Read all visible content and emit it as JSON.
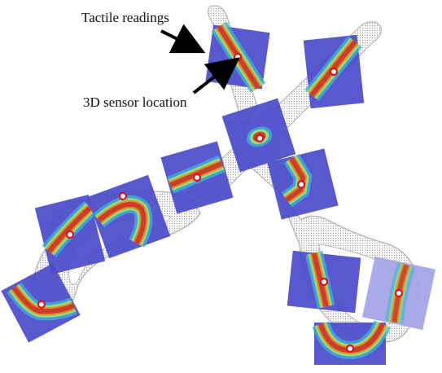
{
  "annotations": {
    "tactile_readings": "Tactile readings",
    "sensor_location": "3D sensor location"
  },
  "colors": {
    "patch_background": "#4a4acb",
    "patch_background_light": "#a3a6e6",
    "contact_hot": "#c8402a",
    "contact_warm": "#e88a2c",
    "contact_edge": "#8ee07a",
    "contact_cool": "#3fb0d8",
    "sensor_marker_ring": "#d8141c",
    "object_outline": "#9a9a9a",
    "arrow": "#000000"
  },
  "object": {
    "name_icon": "scissors-point-cloud"
  },
  "tactile_patches": [
    {
      "id": 1,
      "contact": "diagonal-line"
    },
    {
      "id": 2,
      "contact": "diagonal-line"
    },
    {
      "id": 3,
      "contact": "blob"
    },
    {
      "id": 4,
      "contact": "bar"
    },
    {
      "id": 5,
      "contact": "bent-line"
    },
    {
      "id": 6,
      "contact": "curved-line"
    },
    {
      "id": 7,
      "contact": "curved-line"
    },
    {
      "id": 8,
      "contact": "curved-line"
    },
    {
      "id": 9,
      "contact": "curved-line"
    },
    {
      "id": 10,
      "contact": "diagonal-line"
    },
    {
      "id": 11,
      "contact": "vertical-line"
    },
    {
      "id": 12,
      "contact": "u-shape"
    }
  ]
}
